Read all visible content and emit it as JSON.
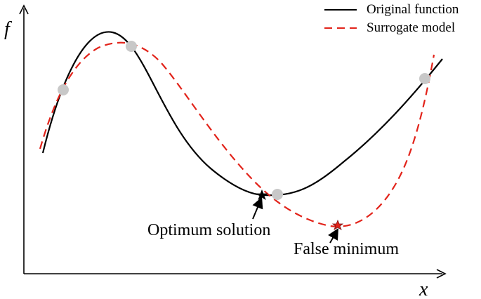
{
  "axes": {
    "y_label": "f",
    "x_label": "x"
  },
  "legend": {
    "items": [
      {
        "label": "Original function",
        "color": "#000000",
        "style": "solid"
      },
      {
        "label": "Surrogate model",
        "color": "#e2231a",
        "style": "dashed"
      }
    ]
  },
  "annotations": {
    "optimum": "Optimum solution",
    "false_min": "False minimum"
  },
  "colors": {
    "original": "#000000",
    "surrogate": "#e2231a",
    "sample_point": "#c8c8c8",
    "optimum_star": "#000000",
    "false_min_star": "#e2231a"
  },
  "icons": {
    "sample_point": "circle",
    "optimum_marker": "star",
    "false_min_marker": "star"
  }
}
